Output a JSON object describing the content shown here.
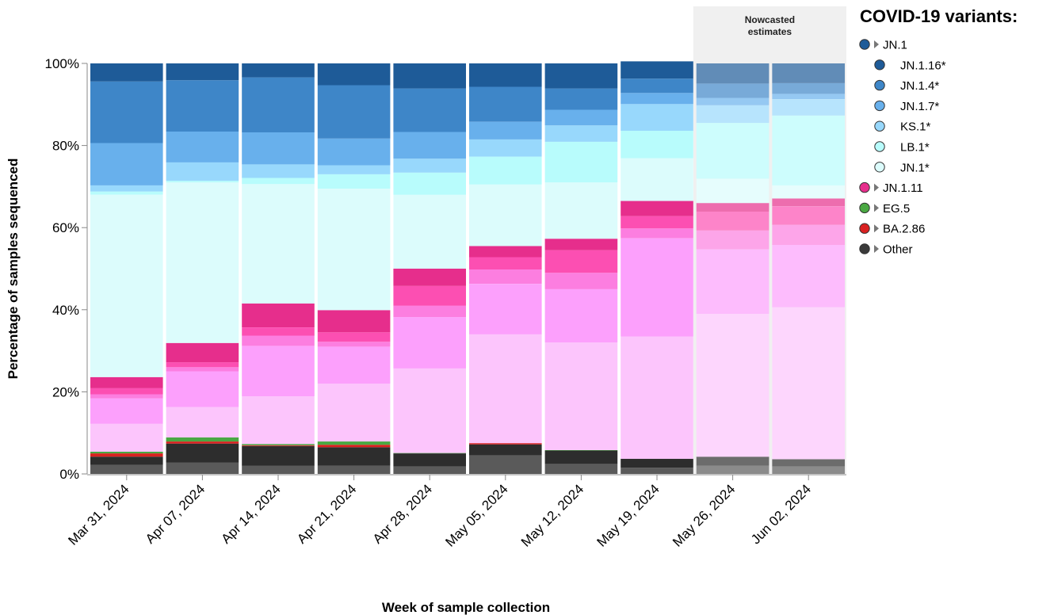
{
  "chart_data": {
    "type": "bar",
    "stacked": true,
    "xlabel": "Week of sample collection",
    "ylabel": "Percentage of samples sequenced",
    "y_ticks": [
      "0%",
      "20%",
      "40%",
      "60%",
      "80%",
      "100%"
    ],
    "ylim": [
      0,
      100
    ],
    "nowcast_label_lines": [
      "Nowcasted",
      "estimates"
    ],
    "nowcast_start_index": 8,
    "categories": [
      "Mar 31, 2024",
      "Apr 07, 2024",
      "Apr 14, 2024",
      "Apr 21, 2024",
      "Apr 28, 2024",
      "May 05, 2024",
      "May 12, 2024",
      "May 19, 2024",
      "May 26, 2024",
      "Jun 02, 2024"
    ],
    "series": [
      {
        "key": "other_a",
        "color": "#5a5a5a",
        "values": [
          2.2,
          2.8,
          2.0,
          2.0,
          1.8,
          4.5,
          2.5,
          1.5,
          2.0,
          1.8
        ]
      },
      {
        "key": "other_b",
        "color": "#2d2d2d",
        "values": [
          2.0,
          4.6,
          4.8,
          4.5,
          3.2,
          2.7,
          3.2,
          2.2,
          2.2,
          1.8
        ]
      },
      {
        "key": "ba286",
        "color": "#d92020",
        "values": [
          0.8,
          0.5,
          0.2,
          0.6,
          0.0,
          0.3,
          0.0,
          0.0,
          0.0,
          0.0
        ]
      },
      {
        "key": "eg5",
        "color": "#4aa843",
        "values": [
          0.4,
          1.0,
          0.3,
          0.8,
          0.1,
          0.0,
          0.1,
          0.0,
          0.0,
          0.0
        ]
      },
      {
        "key": "jn111_a",
        "color": "#fcc5fc",
        "values": [
          6.8,
          7.4,
          11.6,
          14.1,
          20.6,
          26.5,
          26.2,
          29.8,
          34.8,
          37.0
        ]
      },
      {
        "key": "jn111_b",
        "color": "#fca0fc",
        "values": [
          6.2,
          8.7,
          12.3,
          9.0,
          12.5,
          12.3,
          13.0,
          23.9,
          15.7,
          15.2
        ]
      },
      {
        "key": "jn111_c",
        "color": "#fc7ee0",
        "values": [
          1.0,
          1.0,
          2.5,
          1.2,
          2.8,
          3.5,
          4.0,
          2.4,
          4.6,
          4.9
        ]
      },
      {
        "key": "jn111_d",
        "color": "#fc4fb2",
        "values": [
          1.5,
          1.2,
          2.0,
          2.3,
          4.8,
          3.0,
          5.5,
          3.0,
          4.6,
          4.5
        ]
      },
      {
        "key": "jn111_e",
        "color": "#e62e8c",
        "values": [
          2.7,
          4.7,
          5.8,
          5.4,
          4.2,
          2.7,
          2.8,
          3.7,
          2.1,
          1.9
        ]
      },
      {
        "key": "jn1",
        "color": "#dcfcfc",
        "values": [
          44.4,
          39.1,
          29.1,
          29.6,
          18.0,
          15.0,
          13.7,
          10.4,
          5.9,
          3.2
        ]
      },
      {
        "key": "lb1",
        "color": "#b8fcfc",
        "values": [
          0.8,
          0.4,
          1.5,
          3.5,
          5.4,
          6.8,
          9.9,
          6.7,
          13.6,
          17.0
        ]
      },
      {
        "key": "ks1",
        "color": "#98d8fc",
        "values": [
          1.5,
          4.5,
          3.3,
          2.2,
          3.4,
          4.2,
          4.0,
          6.5,
          4.3,
          4.0
        ]
      },
      {
        "key": "jn17",
        "color": "#68b0ec",
        "values": [
          10.3,
          7.5,
          7.8,
          6.5,
          6.5,
          4.3,
          3.8,
          2.7,
          1.8,
          1.3
        ]
      },
      {
        "key": "jn14",
        "color": "#3e86c8",
        "values": [
          15.0,
          12.5,
          13.4,
          13.0,
          10.6,
          8.5,
          5.2,
          3.5,
          3.5,
          2.6
        ]
      },
      {
        "key": "jn116",
        "color": "#1e5b98",
        "values": [
          4.4,
          4.1,
          3.4,
          5.3,
          6.1,
          5.7,
          6.1,
          4.2,
          4.9,
          4.8
        ]
      }
    ]
  },
  "legend": {
    "title": "COVID-19 variants:",
    "items": [
      {
        "label": "JN.1",
        "color": "#1e5b98",
        "indent": false,
        "caret": true
      },
      {
        "label": "JN.1.16*",
        "color": "#1e5b98",
        "indent": true,
        "caret": false
      },
      {
        "label": "JN.1.4*",
        "color": "#3e86c8",
        "indent": true,
        "caret": false
      },
      {
        "label": "JN.1.7*",
        "color": "#68b0ec",
        "indent": true,
        "caret": false
      },
      {
        "label": "KS.1*",
        "color": "#98d8fc",
        "indent": true,
        "caret": false
      },
      {
        "label": "LB.1*",
        "color": "#b8fcfc",
        "indent": true,
        "caret": false
      },
      {
        "label": "JN.1*",
        "color": "#dcfcfc",
        "indent": true,
        "caret": false
      },
      {
        "label": "JN.1.11",
        "color": "#e62e8c",
        "indent": false,
        "caret": true
      },
      {
        "label": "EG.5",
        "color": "#4aa843",
        "indent": false,
        "caret": true
      },
      {
        "label": "BA.2.86",
        "color": "#d92020",
        "indent": false,
        "caret": true
      },
      {
        "label": "Other",
        "color": "#3a3a3a",
        "indent": false,
        "caret": true
      }
    ]
  }
}
